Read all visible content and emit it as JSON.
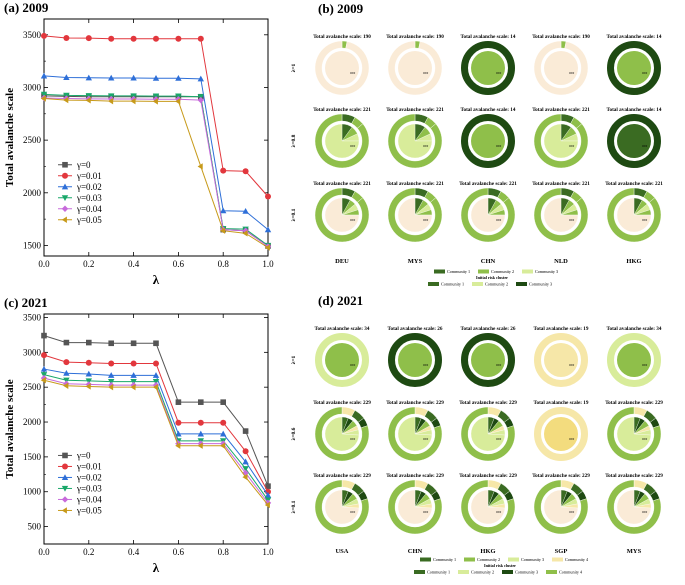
{
  "panels": {
    "a": {
      "label": "(a) 2009"
    },
    "b": {
      "label": "(b) 2009"
    },
    "c": {
      "label": "(c) 2021"
    },
    "d": {
      "label": "(d) 2021"
    }
  },
  "chart_data": [
    {
      "id": "a",
      "type": "line",
      "title": "(a) 2009",
      "xlabel": "λ",
      "ylabel": "Total avalanche scale",
      "xlim": [
        0.0,
        1.0
      ],
      "ylim": [
        1400,
        3650
      ],
      "xticks": [
        "0.0",
        "0.2",
        "0.4",
        "0.6",
        "0.8",
        "1.0"
      ],
      "yticks": [
        1500,
        2000,
        2500,
        3000,
        3500
      ],
      "x": [
        0.0,
        0.1,
        0.2,
        0.3,
        0.4,
        0.5,
        0.6,
        0.7,
        0.8,
        0.9,
        1.0
      ],
      "series": [
        {
          "name": "γ=0",
          "color": "#555555",
          "marker": "square",
          "values": [
            2920,
            2915,
            2912,
            2912,
            2912,
            2912,
            2912,
            2912,
            1650,
            1640,
            1495
          ]
        },
        {
          "name": "γ=0.01",
          "color": "#e2373d",
          "marker": "circle",
          "values": [
            3490,
            3470,
            3468,
            3463,
            3463,
            3463,
            3463,
            3463,
            2210,
            2205,
            1965
          ]
        },
        {
          "name": "γ=0.02",
          "color": "#2e6fd8",
          "marker": "triangle-up",
          "values": [
            3110,
            3095,
            3092,
            3090,
            3090,
            3088,
            3088,
            3082,
            1830,
            1825,
            1650
          ]
        },
        {
          "name": "γ=0.03",
          "color": "#1aa86a",
          "marker": "triangle-down",
          "values": [
            2935,
            2925,
            2922,
            2920,
            2920,
            2918,
            2918,
            2912,
            1660,
            1655,
            1500
          ]
        },
        {
          "name": "γ=0.04",
          "color": "#c76adb",
          "marker": "diamond",
          "values": [
            2900,
            2895,
            2892,
            2890,
            2890,
            2888,
            2888,
            2880,
            1650,
            1640,
            1490
          ]
        },
        {
          "name": "γ=0.05",
          "color": "#c79a1a",
          "marker": "diamond-left",
          "values": [
            2895,
            2880,
            2878,
            2870,
            2870,
            2868,
            2868,
            2250,
            1640,
            1615,
            1480
          ]
        }
      ]
    },
    {
      "id": "c",
      "type": "line",
      "title": "(c) 2021",
      "xlabel": "λ",
      "ylabel": "Total avalanche scale",
      "xlim": [
        0.0,
        1.0
      ],
      "ylim": [
        250,
        3550
      ],
      "xticks": [
        "0.0",
        "0.2",
        "0.4",
        "0.6",
        "0.8",
        "1.0"
      ],
      "yticks": [
        500,
        1000,
        1500,
        2000,
        2500,
        3000,
        3500
      ],
      "x": [
        0.0,
        0.1,
        0.2,
        0.3,
        0.4,
        0.5,
        0.6,
        0.7,
        0.8,
        0.9,
        1.0
      ],
      "series": [
        {
          "name": "γ=0",
          "color": "#555555",
          "marker": "square",
          "values": [
            3240,
            3140,
            3140,
            3130,
            3130,
            3130,
            2285,
            2285,
            2285,
            1870,
            1080
          ]
        },
        {
          "name": "γ=0.01",
          "color": "#e2373d",
          "marker": "circle",
          "values": [
            2960,
            2860,
            2850,
            2840,
            2840,
            2840,
            1990,
            1990,
            1990,
            1580,
            1000
          ]
        },
        {
          "name": "γ=0.02",
          "color": "#2e6fd8",
          "marker": "triangle-up",
          "values": [
            2760,
            2700,
            2690,
            2670,
            2670,
            2670,
            1830,
            1830,
            1830,
            1430,
            950
          ]
        },
        {
          "name": "γ=0.03",
          "color": "#1aa86a",
          "marker": "triangle-down",
          "values": [
            2680,
            2600,
            2590,
            2580,
            2580,
            2580,
            1730,
            1730,
            1730,
            1330,
            880
          ]
        },
        {
          "name": "γ=0.04",
          "color": "#c76adb",
          "marker": "diamond",
          "values": [
            2630,
            2550,
            2540,
            2530,
            2530,
            2530,
            1690,
            1690,
            1690,
            1270,
            840
          ]
        },
        {
          "name": "γ=0.05",
          "color": "#c79a1a",
          "marker": "diamond-left",
          "values": [
            2600,
            2520,
            2510,
            2500,
            2500,
            2500,
            1660,
            1660,
            1660,
            1210,
            810
          ]
        }
      ]
    },
    {
      "id": "b",
      "type": "donut-grid",
      "title": "(b) 2009",
      "columns": [
        "DEU",
        "MYS",
        "CHN",
        "NLD",
        "HKG"
      ],
      "rows": [
        "λ=1",
        "λ=0.8",
        "λ=0.1"
      ],
      "title_prefix": "Total avalanche scale: ",
      "scales": [
        [
          190,
          190,
          14,
          190,
          14
        ],
        [
          221,
          221,
          14,
          221,
          14
        ],
        [
          221,
          221,
          221,
          221,
          221
        ]
      ],
      "legend_outer": [
        "Community 1",
        "Community 2",
        "Community 3"
      ],
      "legend_inner_title": "Initial risk cluster",
      "legend_inner": [
        "Community 1",
        "Community 2",
        "Community 3"
      ]
    },
    {
      "id": "d",
      "type": "donut-grid",
      "title": "(d) 2021",
      "columns": [
        "USA",
        "CHN",
        "HKG",
        "SGP",
        "MYS"
      ],
      "rows": [
        "λ=1",
        "λ=0.6",
        "λ=0.1"
      ],
      "title_prefix": "Total avalanche scale: ",
      "scales": [
        [
          34,
          26,
          26,
          19,
          34
        ],
        [
          229,
          229,
          229,
          19,
          229
        ],
        [
          229,
          229,
          229,
          229,
          229
        ]
      ],
      "legend_outer": [
        "Community 1",
        "Community 2",
        "Community 3",
        "Community 4"
      ],
      "legend_inner_title": "Initial risk cluster",
      "legend_inner": [
        "Community 1",
        "Community 2",
        "Community 3",
        "Community 4"
      ]
    }
  ],
  "colors": {
    "c1": "#3a6b22",
    "c2": "#8fbf4a",
    "c3": "#d8ec9a",
    "c4": "#f6e7a8",
    "peach": "#faebd7",
    "dark": "#1e4a12"
  }
}
